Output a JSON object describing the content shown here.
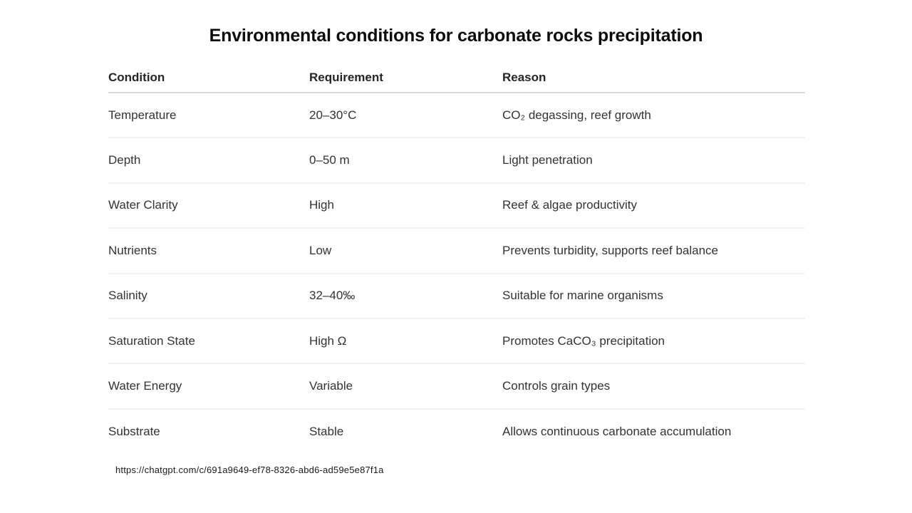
{
  "title": "Environmental conditions for carbonate rocks precipitation",
  "table": {
    "headers": [
      "Condition",
      "Requirement",
      "Reason"
    ],
    "rows": [
      {
        "condition": "Temperature",
        "requirement": "20–30°C",
        "reason": "CO₂ degassing, reef growth"
      },
      {
        "condition": "Depth",
        "requirement": "0–50 m",
        "reason": "Light penetration"
      },
      {
        "condition": "Water Clarity",
        "requirement": "High",
        "reason": "Reef & algae productivity"
      },
      {
        "condition": "Nutrients",
        "requirement": "Low",
        "reason": "Prevents turbidity, supports reef balance"
      },
      {
        "condition": "Salinity",
        "requirement": "32–40‰",
        "reason": "Suitable for marine organisms"
      },
      {
        "condition": "Saturation State",
        "requirement": "High Ω",
        "reason": "Promotes CaCO₃ precipitation"
      },
      {
        "condition": "Water Energy",
        "requirement": "Variable",
        "reason": "Controls grain types"
      },
      {
        "condition": "Substrate",
        "requirement": "Stable",
        "reason": "Allows continuous carbonate accumulation"
      }
    ]
  },
  "footer": {
    "url": "https://chatgpt.com/c/691a9649-ef78-8326-abd6-ad59e5e87f1a"
  },
  "colors": {
    "background": "#ffffff",
    "title_text": "#0d0d0d",
    "header_text": "#262626",
    "body_text": "#333333",
    "header_rule": "#d9d9d9",
    "row_rule": "#f2f2f2"
  }
}
